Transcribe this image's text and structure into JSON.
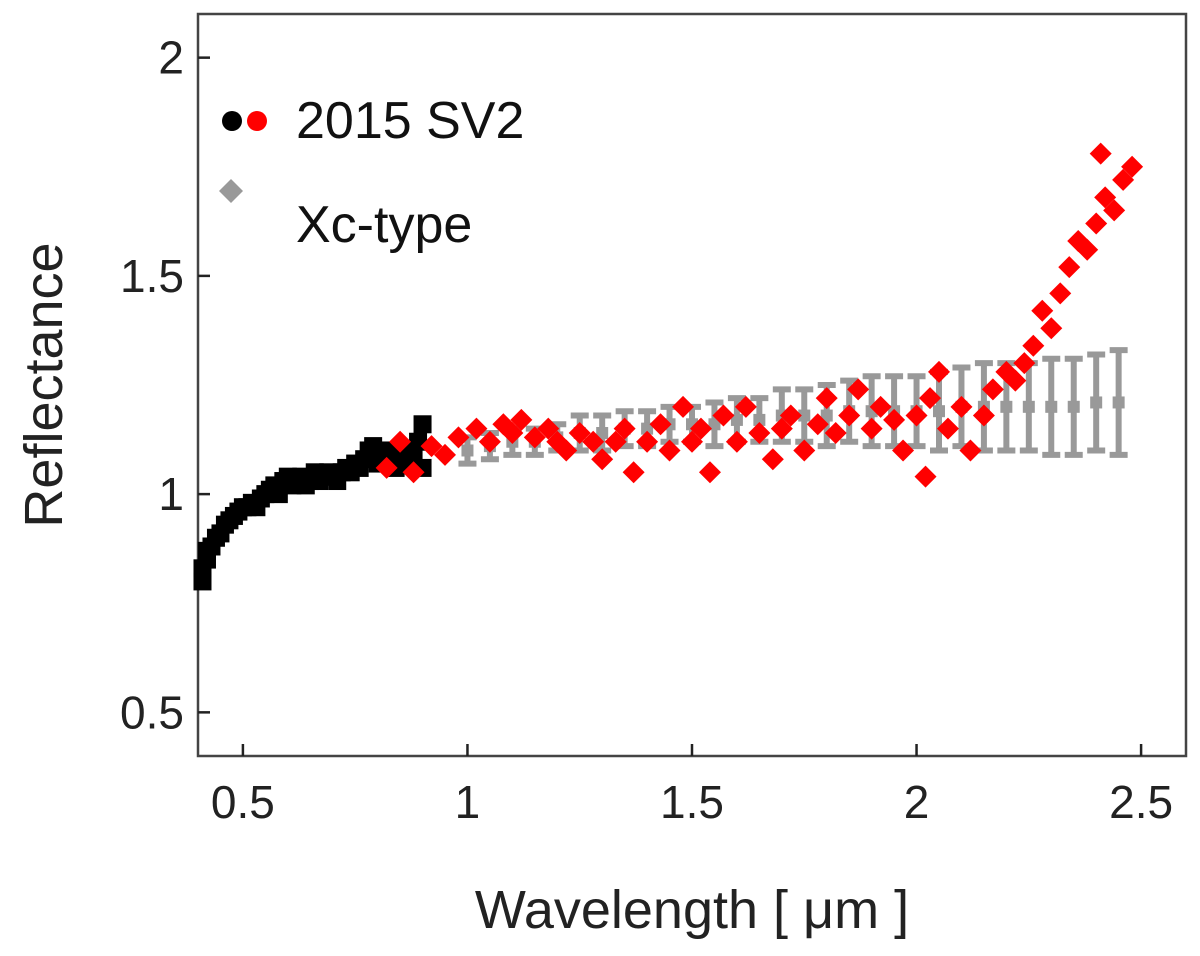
{
  "chart_data": {
    "type": "scatter",
    "xlabel": "Wavelength [ μm ]",
    "ylabel": "Reflectance",
    "xlim": [
      0.4,
      2.6
    ],
    "ylim": [
      0.4,
      2.1
    ],
    "xticks": [
      0.5,
      1,
      1.5,
      2,
      2.5
    ],
    "xtick_labels": [
      "0.5",
      "1",
      "1.5",
      "2",
      "2.5"
    ],
    "yticks": [
      0.5,
      1,
      1.5,
      2
    ],
    "ytick_labels": [
      "0.5",
      "1",
      "1.5",
      "2"
    ],
    "grid": false,
    "legend_position": "top-left",
    "legend": {
      "asteroid": "2015 SV2",
      "reference": "Xc-type"
    },
    "colors": {
      "visible": "#000000",
      "nir": "#ff0000",
      "template": "#999999",
      "axis": "#222222"
    },
    "series": [
      {
        "name": "2015 SV2 (visible)",
        "marker": "square",
        "color": "#000000",
        "points": [
          [
            0.41,
            0.8
          ],
          [
            0.41,
            0.83
          ],
          [
            0.42,
            0.85
          ],
          [
            0.42,
            0.87
          ],
          [
            0.43,
            0.88
          ],
          [
            0.44,
            0.9
          ],
          [
            0.45,
            0.91
          ],
          [
            0.46,
            0.93
          ],
          [
            0.47,
            0.94
          ],
          [
            0.48,
            0.95
          ],
          [
            0.49,
            0.96
          ],
          [
            0.5,
            0.97
          ],
          [
            0.51,
            0.97
          ],
          [
            0.52,
            0.98
          ],
          [
            0.53,
            0.97
          ],
          [
            0.54,
            0.99
          ],
          [
            0.55,
            1.0
          ],
          [
            0.56,
            1.01
          ],
          [
            0.57,
            1.02
          ],
          [
            0.58,
            1.0
          ],
          [
            0.59,
            1.03
          ],
          [
            0.6,
            1.04
          ],
          [
            0.61,
            1.02
          ],
          [
            0.62,
            1.03
          ],
          [
            0.63,
            1.04
          ],
          [
            0.64,
            1.02
          ],
          [
            0.65,
            1.03
          ],
          [
            0.66,
            1.05
          ],
          [
            0.67,
            1.03
          ],
          [
            0.68,
            1.04
          ],
          [
            0.69,
            1.05
          ],
          [
            0.7,
            1.04
          ],
          [
            0.71,
            1.03
          ],
          [
            0.72,
            1.05
          ],
          [
            0.73,
            1.06
          ],
          [
            0.74,
            1.05
          ],
          [
            0.75,
            1.07
          ],
          [
            0.76,
            1.06
          ],
          [
            0.77,
            1.08
          ],
          [
            0.78,
            1.1
          ],
          [
            0.79,
            1.11
          ],
          [
            0.8,
            1.07
          ],
          [
            0.81,
            1.09
          ],
          [
            0.82,
            1.1
          ],
          [
            0.83,
            1.08
          ],
          [
            0.84,
            1.06
          ],
          [
            0.85,
            1.09
          ],
          [
            0.86,
            1.07
          ],
          [
            0.87,
            1.1
          ],
          [
            0.88,
            1.08
          ],
          [
            0.89,
            1.12
          ],
          [
            0.9,
            1.16
          ],
          [
            0.9,
            1.06
          ]
        ]
      },
      {
        "name": "2015 SV2 (near-infrared)",
        "marker": "diamond",
        "color": "#ff0000",
        "points": [
          [
            0.82,
            1.06
          ],
          [
            0.85,
            1.12
          ],
          [
            0.88,
            1.05
          ],
          [
            0.92,
            1.11
          ],
          [
            0.95,
            1.09
          ],
          [
            0.98,
            1.13
          ],
          [
            1.02,
            1.15
          ],
          [
            1.05,
            1.12
          ],
          [
            1.08,
            1.16
          ],
          [
            1.1,
            1.14
          ],
          [
            1.12,
            1.17
          ],
          [
            1.15,
            1.13
          ],
          [
            1.18,
            1.15
          ],
          [
            1.2,
            1.12
          ],
          [
            1.22,
            1.1
          ],
          [
            1.25,
            1.14
          ],
          [
            1.28,
            1.12
          ],
          [
            1.3,
            1.08
          ],
          [
            1.33,
            1.12
          ],
          [
            1.35,
            1.15
          ],
          [
            1.37,
            1.05
          ],
          [
            1.4,
            1.12
          ],
          [
            1.43,
            1.16
          ],
          [
            1.45,
            1.1
          ],
          [
            1.48,
            1.2
          ],
          [
            1.5,
            1.12
          ],
          [
            1.52,
            1.15
          ],
          [
            1.54,
            1.05
          ],
          [
            1.57,
            1.18
          ],
          [
            1.6,
            1.12
          ],
          [
            1.62,
            1.2
          ],
          [
            1.65,
            1.14
          ],
          [
            1.68,
            1.08
          ],
          [
            1.7,
            1.15
          ],
          [
            1.72,
            1.18
          ],
          [
            1.75,
            1.1
          ],
          [
            1.78,
            1.16
          ],
          [
            1.8,
            1.22
          ],
          [
            1.82,
            1.14
          ],
          [
            1.85,
            1.18
          ],
          [
            1.87,
            1.24
          ],
          [
            1.9,
            1.15
          ],
          [
            1.92,
            1.2
          ],
          [
            1.95,
            1.17
          ],
          [
            1.97,
            1.1
          ],
          [
            2.0,
            1.18
          ],
          [
            2.02,
            1.04
          ],
          [
            2.03,
            1.22
          ],
          [
            2.05,
            1.28
          ],
          [
            2.07,
            1.15
          ],
          [
            2.1,
            1.2
          ],
          [
            2.12,
            1.1
          ],
          [
            2.15,
            1.18
          ],
          [
            2.17,
            1.24
          ],
          [
            2.2,
            1.28
          ],
          [
            2.22,
            1.26
          ],
          [
            2.24,
            1.3
          ],
          [
            2.26,
            1.34
          ],
          [
            2.28,
            1.42
          ],
          [
            2.3,
            1.38
          ],
          [
            2.32,
            1.46
          ],
          [
            2.34,
            1.52
          ],
          [
            2.36,
            1.58
          ],
          [
            2.38,
            1.56
          ],
          [
            2.4,
            1.62
          ],
          [
            2.42,
            1.68
          ],
          [
            2.41,
            1.78
          ],
          [
            2.44,
            1.65
          ],
          [
            2.46,
            1.72
          ],
          [
            2.48,
            1.75
          ]
        ]
      },
      {
        "name": "Xc-type",
        "marker": "errorbar",
        "color": "#999999",
        "points": [
          [
            1.0,
            1.1,
            0.03
          ],
          [
            1.05,
            1.11,
            0.03
          ],
          [
            1.1,
            1.12,
            0.03
          ],
          [
            1.15,
            1.12,
            0.03
          ],
          [
            1.2,
            1.13,
            0.03
          ],
          [
            1.25,
            1.14,
            0.04
          ],
          [
            1.3,
            1.14,
            0.04
          ],
          [
            1.35,
            1.15,
            0.04
          ],
          [
            1.4,
            1.15,
            0.04
          ],
          [
            1.45,
            1.16,
            0.04
          ],
          [
            1.5,
            1.16,
            0.04
          ],
          [
            1.55,
            1.16,
            0.05
          ],
          [
            1.6,
            1.17,
            0.05
          ],
          [
            1.65,
            1.17,
            0.05
          ],
          [
            1.7,
            1.18,
            0.06
          ],
          [
            1.75,
            1.18,
            0.06
          ],
          [
            1.8,
            1.18,
            0.07
          ],
          [
            1.85,
            1.19,
            0.07
          ],
          [
            1.9,
            1.19,
            0.08
          ],
          [
            1.95,
            1.19,
            0.08
          ],
          [
            2.0,
            1.19,
            0.08
          ],
          [
            2.05,
            1.19,
            0.09
          ],
          [
            2.1,
            1.2,
            0.09
          ],
          [
            2.15,
            1.2,
            0.1
          ],
          [
            2.2,
            1.2,
            0.1
          ],
          [
            2.25,
            1.2,
            0.1
          ],
          [
            2.3,
            1.2,
            0.11
          ],
          [
            2.35,
            1.2,
            0.11
          ],
          [
            2.4,
            1.21,
            0.11
          ],
          [
            2.45,
            1.21,
            0.12
          ]
        ]
      }
    ]
  }
}
